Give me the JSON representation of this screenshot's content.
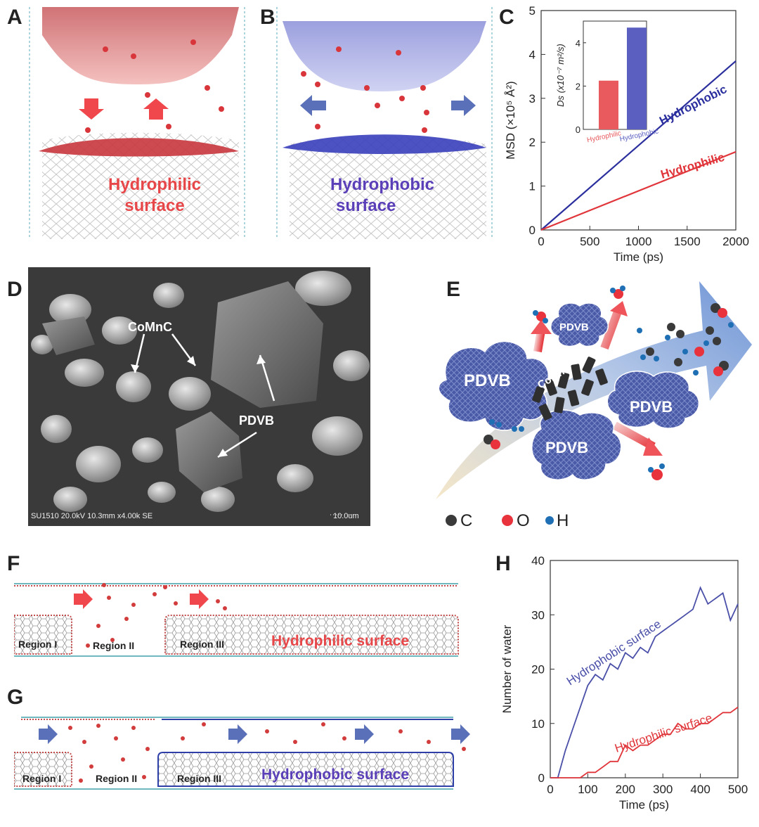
{
  "panels": {
    "a": {
      "label": "A",
      "surface_line1": "Hydrophilic",
      "surface_line2": "surface"
    },
    "b": {
      "label": "B",
      "surface_line1": "Hydrophobic",
      "surface_line2": "surface"
    },
    "c": {
      "label": "C"
    },
    "d": {
      "label": "D",
      "lbl_comnc": "CoMnC",
      "lbl_pdvb": "PDVB",
      "sem_info": "SU1510 20.0kV 10.3mm x4.00k SE",
      "scale_bar": "10.0um"
    },
    "e": {
      "label": "E",
      "pdvb": "PDVB",
      "comnc": "CoMnC",
      "legend": [
        {
          "sym": "C",
          "color": "#3a3a3a"
        },
        {
          "sym": "O",
          "color": "#e8323c"
        },
        {
          "sym": "H",
          "color": "#1f6fb5"
        }
      ]
    },
    "f": {
      "label": "F",
      "region1": "Region I",
      "region2": "Region II",
      "region3": "Region III",
      "surface": "Hydrophilic surface"
    },
    "g": {
      "label": "G",
      "region1": "Region I",
      "region2": "Region II",
      "region3": "Region III",
      "surface": "Hydrophobic surface"
    },
    "h": {
      "label": "H"
    }
  },
  "chart_data": [
    {
      "id": "C",
      "type": "line",
      "xlabel": "Time (ps)",
      "ylabel": "MSD (×10⁵ Å²)",
      "xlim": [
        0,
        2000
      ],
      "ylim": [
        0,
        5
      ],
      "xticks": [
        0,
        500,
        1000,
        1500,
        2000
      ],
      "yticks": [
        0,
        1,
        2,
        3,
        4,
        5
      ],
      "series": [
        {
          "name": "Hydrophobic",
          "color": "#2b2f9e",
          "x": [
            0,
            2000
          ],
          "y": [
            0,
            3.85
          ]
        },
        {
          "name": "Hydrophilic",
          "color": "#e0363b",
          "x": [
            0,
            2000
          ],
          "y": [
            0,
            1.78
          ]
        }
      ],
      "inset": {
        "type": "bar",
        "ylabel": "Ds (x10⁻⁷ m²/s)",
        "ylim": [
          0,
          5
        ],
        "yticks": [
          0,
          2,
          4
        ],
        "categories": [
          "Hydrophilic",
          "Hydrophobic"
        ],
        "values": [
          2.25,
          4.7
        ],
        "colors": [
          "#e85a5e",
          "#5a5fc0"
        ]
      }
    },
    {
      "id": "H",
      "type": "line",
      "xlabel": "Time (ps)",
      "ylabel": "Number of water",
      "xlim": [
        0,
        500
      ],
      "ylim": [
        0,
        40
      ],
      "xticks": [
        0,
        100,
        200,
        300,
        400,
        500
      ],
      "yticks": [
        0,
        10,
        20,
        30,
        40
      ],
      "series": [
        {
          "name": "Hydrophobic surface",
          "color": "#4a4fa8",
          "x": [
            0,
            20,
            40,
            60,
            80,
            100,
            120,
            140,
            160,
            180,
            200,
            220,
            240,
            260,
            280,
            300,
            320,
            340,
            360,
            380,
            400,
            420,
            440,
            460,
            480,
            500
          ],
          "y": [
            0,
            0,
            5,
            9,
            13,
            17,
            19,
            18,
            21,
            20,
            23,
            22,
            24,
            23,
            26,
            27,
            28,
            29,
            30,
            31,
            35,
            32,
            33,
            34,
            29,
            32
          ]
        },
        {
          "name": "Hydrophilic surface",
          "color": "#e0363b",
          "x": [
            0,
            20,
            40,
            60,
            80,
            100,
            120,
            140,
            160,
            180,
            200,
            220,
            240,
            260,
            280,
            300,
            320,
            340,
            360,
            380,
            400,
            420,
            440,
            460,
            480,
            500
          ],
          "y": [
            0,
            0,
            0,
            0,
            0,
            1,
            1,
            2,
            3,
            3,
            6,
            5,
            6,
            6,
            7,
            8,
            8,
            10,
            9,
            9,
            10,
            10,
            11,
            12,
            12,
            13
          ]
        }
      ]
    }
  ]
}
